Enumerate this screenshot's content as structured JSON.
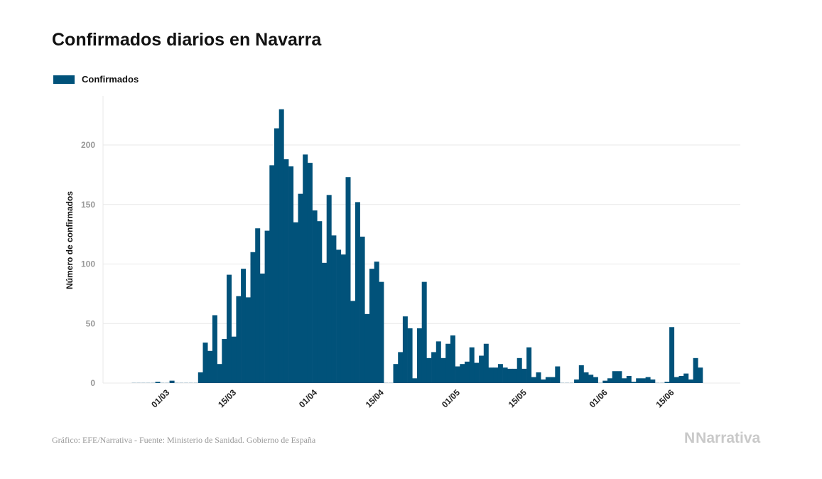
{
  "header": {
    "title": "Confirmados diarios en Navarra"
  },
  "footer": {
    "source": "Gráfico: EFE/Narrativa - Fuente: Ministerio de Sanidad. Gobierno de España",
    "logo": "Narrativa",
    "logo_mark": "N"
  },
  "colors": {
    "bar": "#01527a",
    "grid": "#e8e8e8",
    "tick": "#999999"
  },
  "chart_data": {
    "type": "bar",
    "title": "Confirmados diarios en Navarra",
    "xlabel": "",
    "ylabel": "Número de confirmados",
    "legend": {
      "position": "top-left",
      "entries": [
        "Confirmados"
      ]
    },
    "series": [
      {
        "name": "Confirmados",
        "values": [
          0,
          0,
          0,
          0,
          0,
          1,
          0,
          0,
          2,
          0,
          0,
          0,
          0,
          0,
          9,
          34,
          27,
          57,
          16,
          37,
          91,
          39,
          73,
          96,
          72,
          110,
          130,
          92,
          128,
          183,
          214,
          230,
          188,
          182,
          135,
          159,
          192,
          185,
          145,
          136,
          101,
          158,
          124,
          112,
          108,
          173,
          69,
          152,
          123,
          58,
          96,
          102,
          85,
          0,
          0,
          16,
          26,
          56,
          46,
          4,
          46,
          85,
          21,
          26,
          35,
          21,
          33,
          40,
          14,
          16,
          18,
          30,
          17,
          23,
          33,
          13,
          13,
          16,
          13,
          12,
          12,
          21,
          12,
          30,
          5,
          9,
          3,
          5,
          5,
          14,
          0,
          0,
          0,
          3,
          15,
          9,
          7,
          5,
          0,
          2,
          4,
          10,
          10,
          4,
          6,
          1,
          4,
          4,
          5,
          3,
          0,
          0,
          1,
          47,
          5,
          6,
          8,
          3,
          21,
          13
        ]
      }
    ],
    "start_date": "23/02",
    "x_ticks": [
      {
        "day_index": 7,
        "label": "01/03"
      },
      {
        "day_index": 21,
        "label": "15/03"
      },
      {
        "day_index": 38,
        "label": "01/04"
      },
      {
        "day_index": 52,
        "label": "15/04"
      },
      {
        "day_index": 68,
        "label": "01/05"
      },
      {
        "day_index": 82,
        "label": "15/05"
      },
      {
        "day_index": 99,
        "label": "01/06"
      },
      {
        "day_index": 113,
        "label": "15/06"
      }
    ],
    "y_ticks": [
      0,
      50,
      100,
      150,
      200
    ],
    "ylim": [
      0,
      250
    ],
    "grid": true
  }
}
